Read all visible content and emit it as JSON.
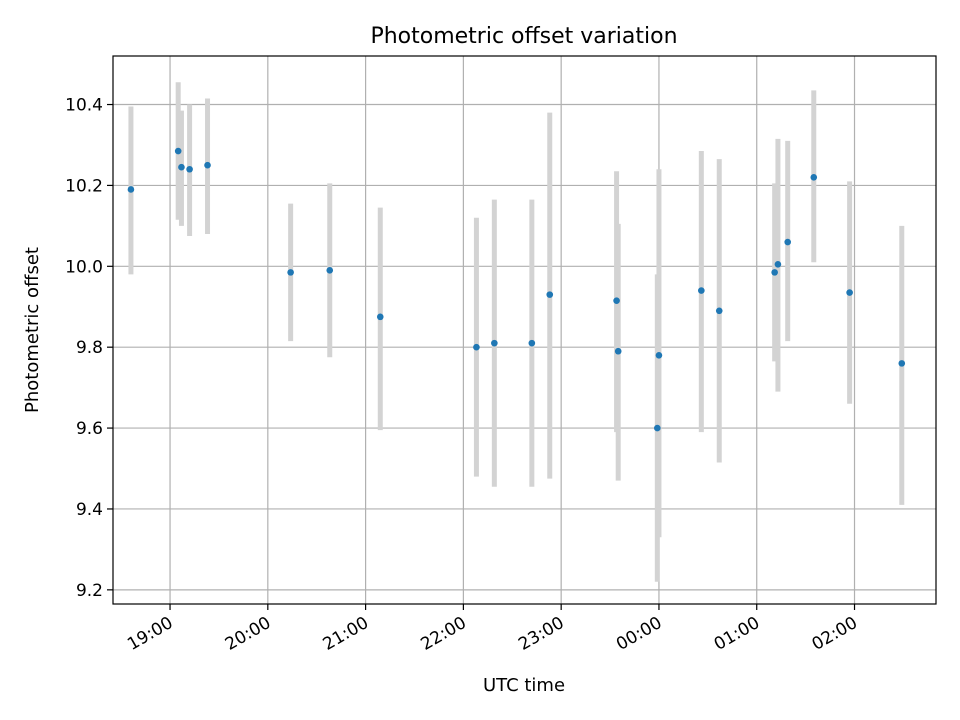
{
  "chart_data": {
    "type": "scatter",
    "title": "Photometric offset variation",
    "xlabel": "UTC time",
    "ylabel": "Photometric offset",
    "x_unit": "UTC hh:mm (times after 00:00 are next day)",
    "xlim": [
      "18:25",
      "02:50"
    ],
    "ylim": [
      9.165,
      10.52
    ],
    "grid": true,
    "legend": "none",
    "x_ticks": [
      "19:00",
      "20:00",
      "21:00",
      "22:00",
      "23:00",
      "00:00",
      "01:00",
      "02:00"
    ],
    "y_ticks": [
      9.2,
      9.4,
      9.6,
      9.8,
      10.0,
      10.2,
      10.4
    ],
    "y_tick_labels": [
      "9.2",
      "9.4",
      "9.6",
      "9.8",
      "10.0",
      "10.2",
      "10.4"
    ],
    "colors": {
      "marker": "#1f77b4",
      "errorbar": "#d3d3d3",
      "grid": "#b0b0b0"
    },
    "series": [
      {
        "x": [
          "18:36",
          "19:05",
          "19:07",
          "19:12",
          "19:23",
          "20:14",
          "20:38",
          "21:09",
          "22:08",
          "22:19",
          "22:42",
          "22:53",
          "23:34",
          "23:35",
          "23:59",
          "00:00",
          "00:26",
          "00:37",
          "01:11",
          "01:13",
          "01:19",
          "01:35",
          "01:57",
          "02:29"
        ],
        "y": [
          10.19,
          10.285,
          10.245,
          10.24,
          10.25,
          9.985,
          9.99,
          9.875,
          9.8,
          9.81,
          9.81,
          9.93,
          9.915,
          9.79,
          9.6,
          9.78,
          9.94,
          9.89,
          9.985,
          10.005,
          10.06,
          10.22,
          9.935,
          9.76
        ],
        "yerr_low": [
          9.98,
          10.115,
          10.1,
          10.075,
          10.08,
          9.815,
          9.775,
          9.595,
          9.48,
          9.455,
          9.455,
          9.475,
          9.59,
          9.47,
          9.22,
          9.33,
          9.59,
          9.515,
          9.765,
          9.69,
          9.815,
          10.01,
          9.66,
          9.41
        ],
        "yerr_high": [
          10.395,
          10.455,
          10.385,
          10.4,
          10.415,
          10.155,
          10.205,
          10.145,
          10.12,
          10.165,
          10.165,
          10.38,
          10.235,
          10.105,
          9.98,
          10.24,
          10.285,
          10.265,
          10.205,
          10.315,
          10.31,
          10.435,
          10.21,
          10.1
        ]
      }
    ]
  }
}
